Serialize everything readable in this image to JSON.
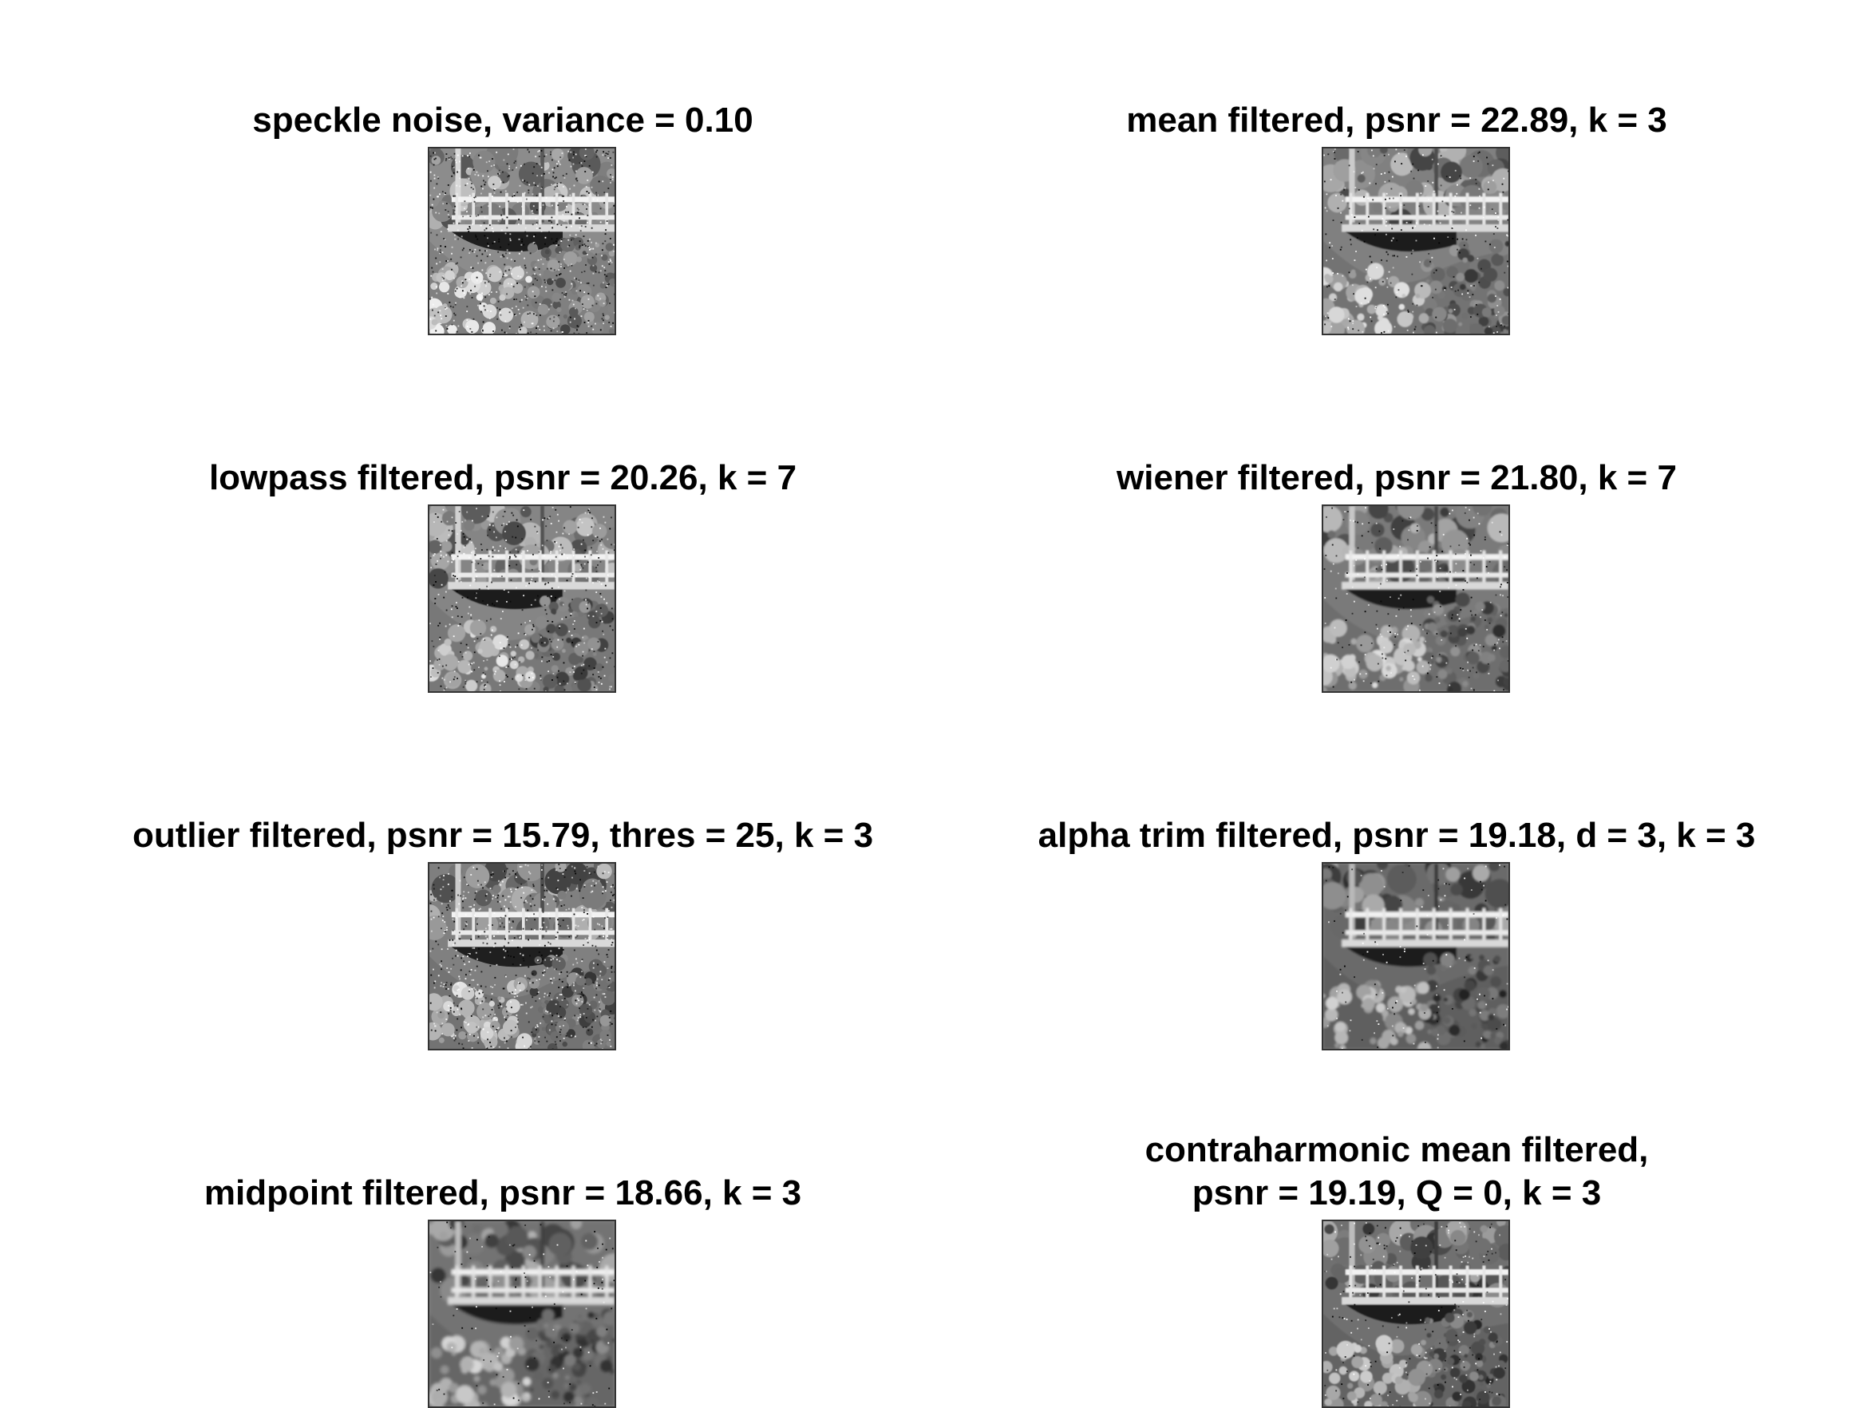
{
  "panels": [
    {
      "id": "speckle",
      "title": [
        "speckle noise, variance = 0.10"
      ],
      "noise": 0.9,
      "blur": 0,
      "tone": 0.55
    },
    {
      "id": "mean",
      "title": [
        "mean filtered, psnr = 22.89, k = 3"
      ],
      "noise": 0.35,
      "blur": 1,
      "tone": 0.5
    },
    {
      "id": "lowpass",
      "title": [
        "lowpass filtered, psnr = 20.26, k = 7"
      ],
      "noise": 0.6,
      "blur": 0.5,
      "tone": 0.52
    },
    {
      "id": "wiener",
      "title": [
        "wiener filtered, psnr = 21.80, k = 7"
      ],
      "noise": 0.3,
      "blur": 1.2,
      "tone": 0.48
    },
    {
      "id": "outlier",
      "title": [
        "outlier filtered, psnr = 15.79, thres = 25, k = 3"
      ],
      "noise": 0.85,
      "blur": 0,
      "tone": 0.5
    },
    {
      "id": "alphatrim",
      "title": [
        "alpha trim filtered, psnr = 19.18, d = 3, k = 3"
      ],
      "noise": 0.15,
      "blur": 1.8,
      "tone": 0.42
    },
    {
      "id": "midpoint",
      "title": [
        "midpoint filtered, psnr = 18.66, k = 3"
      ],
      "noise": 0.15,
      "blur": 2.2,
      "tone": 0.45
    },
    {
      "id": "contraharmonic",
      "title": [
        "contraharmonic mean filtered,",
        "psnr = 19.19, Q = 0, k = 3"
      ],
      "noise": 0.3,
      "blur": 1,
      "tone": 0.44
    }
  ]
}
